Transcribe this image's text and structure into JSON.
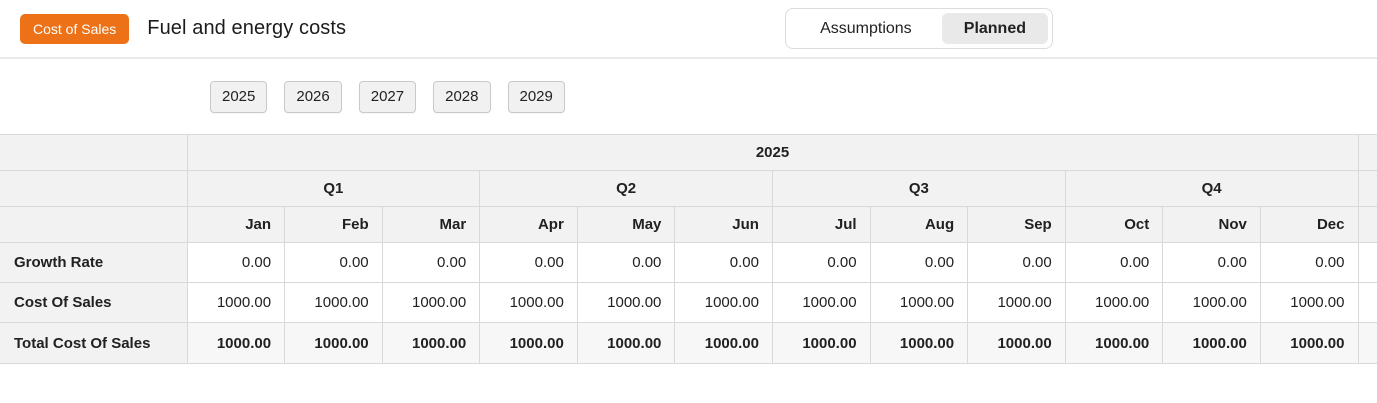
{
  "colors": {
    "accent_orange": "#ED7117",
    "header_cell_bg": "#F2F2F2",
    "total_row_bg": "#F7F7F7",
    "table_border": "#D9D9D9",
    "selected_tab_bg": "#E9E9E9"
  },
  "header": {
    "category_badge": "Cost of Sales",
    "title": "Fuel and energy costs",
    "tabs": [
      {
        "label": "Assumptions",
        "selected": false
      },
      {
        "label": "Planned",
        "selected": true
      }
    ]
  },
  "year_buttons": [
    "2025",
    "2026",
    "2027",
    "2028",
    "2029"
  ],
  "table": {
    "year": "2025",
    "quarters": [
      "Q1",
      "Q2",
      "Q3",
      "Q4"
    ],
    "months": [
      "Jan",
      "Feb",
      "Mar",
      "Apr",
      "May",
      "Jun",
      "Jul",
      "Aug",
      "Sep",
      "Oct",
      "Nov",
      "Dec"
    ],
    "rows": [
      {
        "label": "Growth Rate",
        "values": [
          "0.00",
          "0.00",
          "0.00",
          "0.00",
          "0.00",
          "0.00",
          "0.00",
          "0.00",
          "0.00",
          "0.00",
          "0.00",
          "0.00"
        ]
      },
      {
        "label": "Cost Of Sales",
        "values": [
          "1000.00",
          "1000.00",
          "1000.00",
          "1000.00",
          "1000.00",
          "1000.00",
          "1000.00",
          "1000.00",
          "1000.00",
          "1000.00",
          "1000.00",
          "1000.00"
        ]
      },
      {
        "label": "Total Cost Of Sales",
        "values": [
          "1000.00",
          "1000.00",
          "1000.00",
          "1000.00",
          "1000.00",
          "1000.00",
          "1000.00",
          "1000.00",
          "1000.00",
          "1000.00",
          "1000.00",
          "1000.00"
        ]
      }
    ]
  }
}
